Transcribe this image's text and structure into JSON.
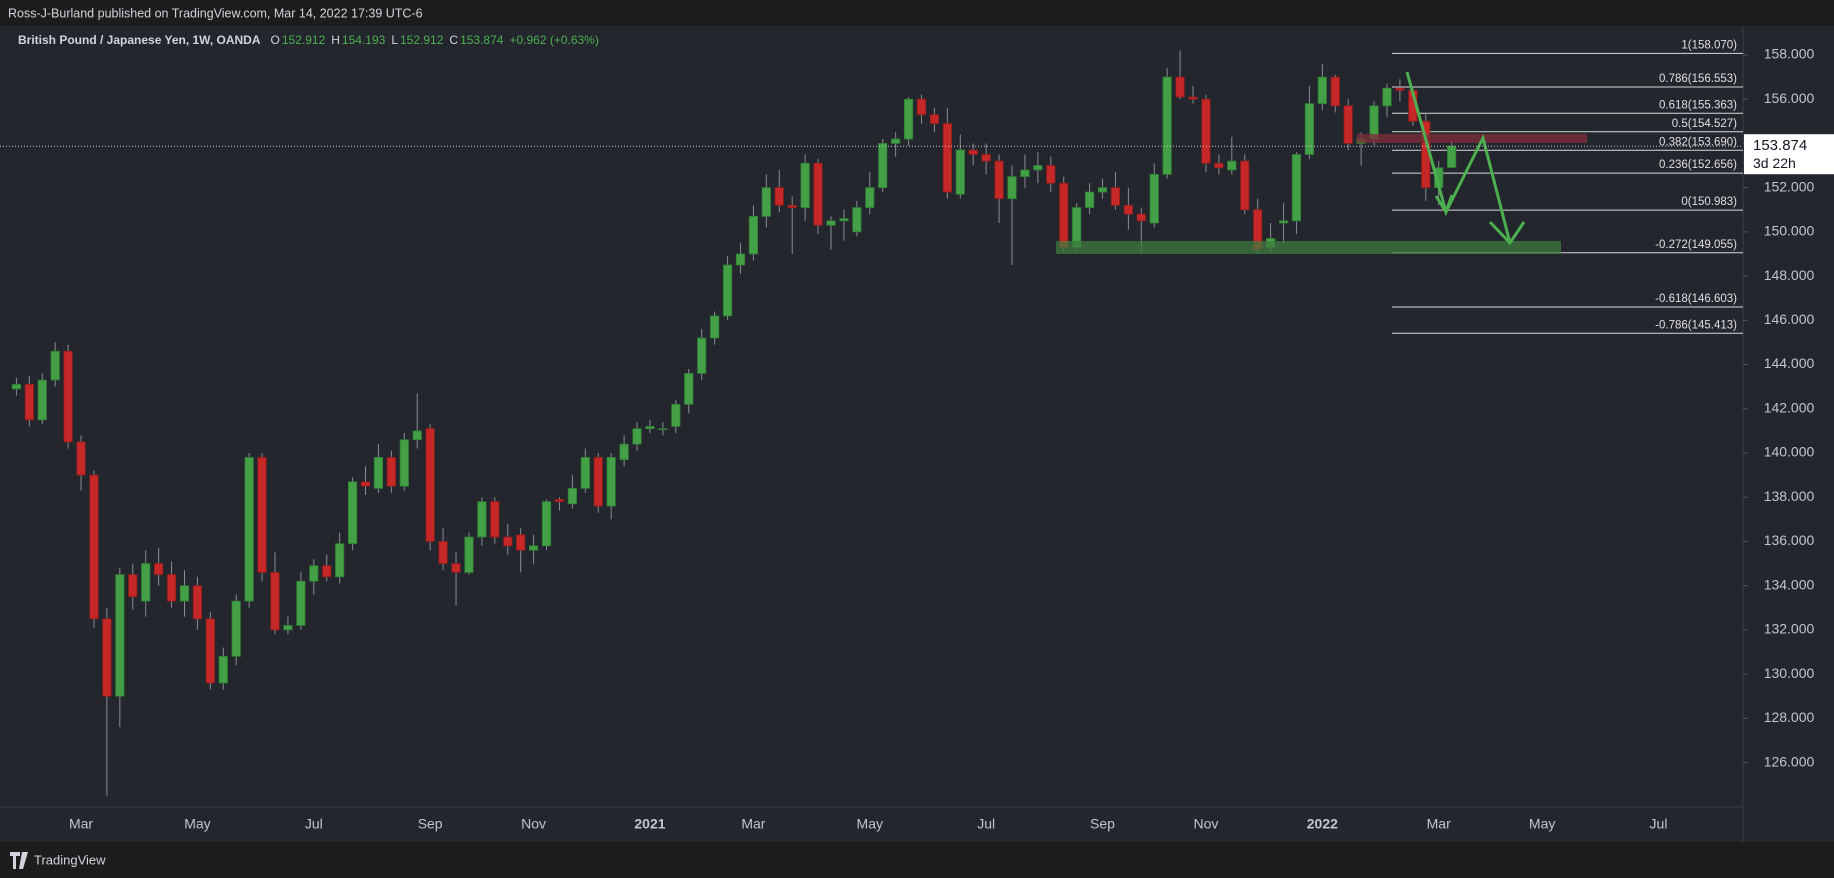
{
  "header": {
    "publisher": "Ross-J-Burland published on TradingView.com, Mar 14, 2022 17:39 UTC-6",
    "symbol": "British Pound / Japanese Yen, 1W, OANDA",
    "ohlc": [
      "O",
      "152.912",
      "H",
      "154.193",
      "L",
      "152.912",
      "C",
      "153.874",
      "+0.962 (+0.63%)"
    ]
  },
  "footer": {
    "brand": "TradingView"
  },
  "chart_data": {
    "type": "candlestick",
    "up_color": "#43a047",
    "down_color": "#c62828",
    "wick_color": "#8a8d94",
    "grid": false,
    "categories": [
      null,
      null,
      null,
      null,
      null,
      "Mar",
      null,
      null,
      null,
      null,
      null,
      null,
      null,
      null,
      "May",
      null,
      null,
      null,
      null,
      null,
      null,
      null,
      null,
      "Jul",
      null,
      null,
      null,
      null,
      null,
      null,
      null,
      null,
      "Sep",
      null,
      null,
      null,
      null,
      null,
      null,
      null,
      "Nov",
      null,
      null,
      null,
      null,
      null,
      null,
      null,
      null,
      "2021",
      null,
      null,
      null,
      null,
      null,
      null,
      null,
      "Mar",
      null,
      null,
      null,
      null,
      null,
      null,
      null,
      null,
      "May",
      null,
      null,
      null,
      null,
      null,
      null,
      null,
      null,
      "Jul",
      null,
      null,
      null,
      null,
      null,
      null,
      null,
      null,
      "Sep",
      null,
      null,
      null,
      null,
      null,
      null,
      null,
      "Nov",
      null,
      null,
      null,
      null,
      null,
      null,
      null,
      null,
      "2022",
      null,
      null,
      null,
      null,
      null,
      null,
      null,
      null,
      "Mar",
      null,
      null,
      null,
      null,
      null,
      null,
      null,
      "May",
      null,
      null,
      null,
      null,
      null,
      null,
      null,
      null,
      "Jul",
      null,
      null,
      null,
      null,
      null,
      null
    ],
    "open": [
      142.9,
      143.1,
      141.5,
      143.3,
      144.6,
      140.5,
      139.0,
      132.5,
      129.0,
      134.5,
      133.3,
      135.0,
      134.5,
      133.3,
      134.0,
      132.5,
      129.6,
      130.8,
      133.3,
      139.8,
      134.6,
      132.0,
      132.2,
      134.2,
      134.9,
      134.4,
      135.9,
      138.7,
      138.4,
      139.8,
      138.5,
      140.6,
      141.1,
      136.0,
      135.0,
      134.6,
      136.2,
      137.8,
      136.2,
      136.3,
      135.6,
      135.8,
      137.9,
      137.7,
      138.4,
      139.8,
      137.6,
      139.7,
      140.4,
      141.1,
      141.1,
      141.2,
      142.2,
      143.6,
      145.2,
      146.2,
      148.5,
      149.0,
      150.7,
      152.0,
      151.2,
      151.1,
      153.1,
      150.3,
      150.5,
      150.0,
      151.1,
      152.0,
      154.0,
      154.2,
      156.0,
      155.3,
      154.9,
      151.7,
      153.7,
      153.5,
      153.2,
      151.5,
      152.5,
      152.8,
      153.0,
      152.2,
      149.3,
      151.1,
      151.8,
      152.0,
      151.2,
      150.8,
      150.4,
      152.6,
      157.0,
      156.1,
      156.0,
      153.1,
      152.8,
      153.2,
      151.0,
      149.3,
      150.4,
      150.5,
      153.5,
      155.8,
      157.0,
      155.7,
      154.0,
      154.2,
      155.7,
      156.5,
      156.4,
      155.0,
      152.0,
      152.912,
      null,
      null,
      null,
      null,
      null,
      null,
      null,
      null,
      null,
      null,
      null,
      null,
      null,
      null,
      null,
      null,
      null,
      null,
      null,
      null,
      null,
      null
    ],
    "high": [
      143.4,
      143.5,
      143.6,
      145.0,
      144.9,
      140.8,
      139.2,
      133.0,
      134.8,
      135.0,
      135.6,
      135.7,
      135.1,
      134.7,
      134.4,
      132.8,
      131.2,
      133.6,
      140.0,
      140.0,
      135.5,
      132.6,
      134.6,
      135.2,
      135.4,
      136.4,
      138.9,
      139.4,
      140.4,
      140.1,
      140.9,
      142.7,
      141.3,
      136.6,
      135.5,
      136.4,
      138.0,
      138.0,
      136.8,
      136.6,
      136.3,
      137.9,
      138.0,
      139.0,
      140.2,
      140.0,
      140.0,
      140.8,
      141.4,
      141.5,
      141.4,
      142.4,
      143.8,
      145.6,
      146.4,
      148.9,
      149.5,
      151.2,
      152.6,
      152.8,
      151.6,
      153.5,
      153.3,
      150.7,
      151.0,
      151.4,
      152.7,
      154.2,
      154.5,
      156.1,
      156.2,
      155.6,
      155.6,
      154.4,
      154.0,
      154.0,
      153.5,
      153.0,
      153.5,
      153.6,
      153.4,
      152.5,
      151.3,
      152.2,
      152.4,
      152.7,
      152.0,
      151.1,
      153.1,
      157.4,
      158.2,
      156.6,
      156.2,
      153.5,
      154.3,
      153.5,
      151.5,
      150.4,
      151.3,
      153.6,
      156.6,
      157.6,
      157.1,
      156.0,
      154.5,
      155.9,
      156.7,
      156.9,
      156.6,
      155.4,
      153.2,
      154.193,
      null,
      null,
      null,
      null,
      null,
      null,
      null,
      null,
      null,
      null,
      null,
      null,
      null,
      null,
      null,
      null,
      null,
      null,
      null,
      null,
      null,
      null
    ],
    "low": [
      142.6,
      141.2,
      141.3,
      143.0,
      140.2,
      138.3,
      132.1,
      124.5,
      127.6,
      132.9,
      132.6,
      134.0,
      133.0,
      132.6,
      132.0,
      129.3,
      129.3,
      130.4,
      133.0,
      134.2,
      131.8,
      131.8,
      132.0,
      133.6,
      134.2,
      134.1,
      135.6,
      138.1,
      138.2,
      138.2,
      138.3,
      140.2,
      135.6,
      134.7,
      133.1,
      134.5,
      135.8,
      135.9,
      135.4,
      134.6,
      135.0,
      135.6,
      137.4,
      137.5,
      138.2,
      137.3,
      137.0,
      139.4,
      140.1,
      140.9,
      140.8,
      140.9,
      141.8,
      143.3,
      144.9,
      146.0,
      148.1,
      148.7,
      150.2,
      150.9,
      149.0,
      150.5,
      149.9,
      149.2,
      149.6,
      149.8,
      150.8,
      151.8,
      153.4,
      153.9,
      154.9,
      154.5,
      151.5,
      151.5,
      153.0,
      152.6,
      150.4,
      148.5,
      152.0,
      152.2,
      151.8,
      149.1,
      149.2,
      150.8,
      151.5,
      151.0,
      150.1,
      149.0,
      150.2,
      152.4,
      156.0,
      155.8,
      152.7,
      152.6,
      152.6,
      150.8,
      149.0,
      149.1,
      149.5,
      149.9,
      153.3,
      155.5,
      155.4,
      153.7,
      153.0,
      153.9,
      155.2,
      155.9,
      154.8,
      151.4,
      151.2,
      152.912,
      null,
      null,
      null,
      null,
      null,
      null,
      null,
      null,
      null,
      null,
      null,
      null,
      null,
      null,
      null,
      null,
      null,
      null,
      null,
      null,
      null,
      null
    ],
    "close": [
      143.1,
      141.5,
      143.3,
      144.6,
      140.5,
      139.0,
      132.5,
      129.0,
      134.5,
      133.5,
      135.0,
      134.5,
      133.3,
      134.0,
      132.5,
      129.6,
      130.8,
      133.3,
      139.8,
      134.6,
      132.0,
      132.2,
      134.2,
      134.9,
      134.4,
      135.9,
      138.7,
      138.5,
      139.8,
      138.5,
      140.6,
      141.0,
      136.0,
      135.0,
      134.6,
      136.2,
      137.8,
      136.2,
      135.8,
      135.6,
      135.8,
      137.8,
      137.8,
      138.4,
      139.8,
      137.6,
      139.8,
      140.4,
      141.1,
      141.2,
      141.1,
      142.2,
      143.6,
      145.2,
      146.2,
      148.5,
      149.0,
      150.7,
      152.0,
      151.2,
      151.1,
      153.1,
      150.3,
      150.5,
      150.6,
      151.1,
      152.0,
      154.0,
      154.2,
      156.0,
      155.3,
      154.9,
      151.8,
      153.7,
      153.5,
      153.2,
      151.5,
      152.5,
      152.8,
      153.0,
      152.2,
      149.3,
      151.1,
      151.8,
      152.0,
      151.2,
      150.8,
      150.5,
      152.6,
      157.0,
      156.1,
      156.0,
      153.1,
      152.9,
      153.2,
      151.0,
      149.2,
      149.7,
      150.5,
      153.5,
      155.8,
      157.0,
      155.7,
      154.0,
      154.2,
      155.7,
      156.5,
      156.4,
      155.0,
      152.0,
      152.9,
      153.874,
      null,
      null,
      null,
      null,
      null,
      null,
      null,
      null,
      null,
      null,
      null,
      null,
      null,
      null,
      null,
      null,
      null,
      null,
      null,
      null,
      null,
      null
    ],
    "ylim": [
      123.99,
      159.31
    ],
    "yticks": [
      {
        "value": 126,
        "label": "126.000"
      },
      {
        "value": 128,
        "label": "128.000"
      },
      {
        "value": 130,
        "label": "130.000"
      },
      {
        "value": 132,
        "label": "132.000"
      },
      {
        "value": 134,
        "label": "134.000"
      },
      {
        "value": 136,
        "label": "136.000"
      },
      {
        "value": 138,
        "label": "138.000"
      },
      {
        "value": 140,
        "label": "140.000"
      },
      {
        "value": 142,
        "label": "142.000"
      },
      {
        "value": 144,
        "label": "144.000"
      },
      {
        "value": 146,
        "label": "146.000"
      },
      {
        "value": 148,
        "label": "148.000"
      },
      {
        "value": 150,
        "label": "150.000"
      },
      {
        "value": 152,
        "label": "152.000"
      },
      {
        "value": 154,
        "label": "154.000"
      },
      {
        "value": 156,
        "label": "156.000"
      },
      {
        "value": 158,
        "label": "158.000"
      }
    ],
    "last_price": {
      "value": 153.874,
      "label": "153.874",
      "countdown": "3d 22h"
    },
    "fib_levels": [
      {
        "value": 158.07,
        "label": "1(158.070)"
      },
      {
        "value": 156.553,
        "label": "0.786(156.553)"
      },
      {
        "value": 155.363,
        "label": "0.618(155.363)"
      },
      {
        "value": 154.527,
        "label": "0.5(154.527)"
      },
      {
        "value": 153.69,
        "label": "0.382(153.690)"
      },
      {
        "value": 152.656,
        "label": "0.236(152.656)"
      },
      {
        "value": 150.983,
        "label": "0(150.983)"
      },
      {
        "value": 149.055,
        "label": "-0.272(149.055)"
      },
      {
        "value": 146.603,
        "label": "-0.618(146.603)"
      },
      {
        "value": 145.413,
        "label": "-0.786(145.413)"
      }
    ]
  }
}
